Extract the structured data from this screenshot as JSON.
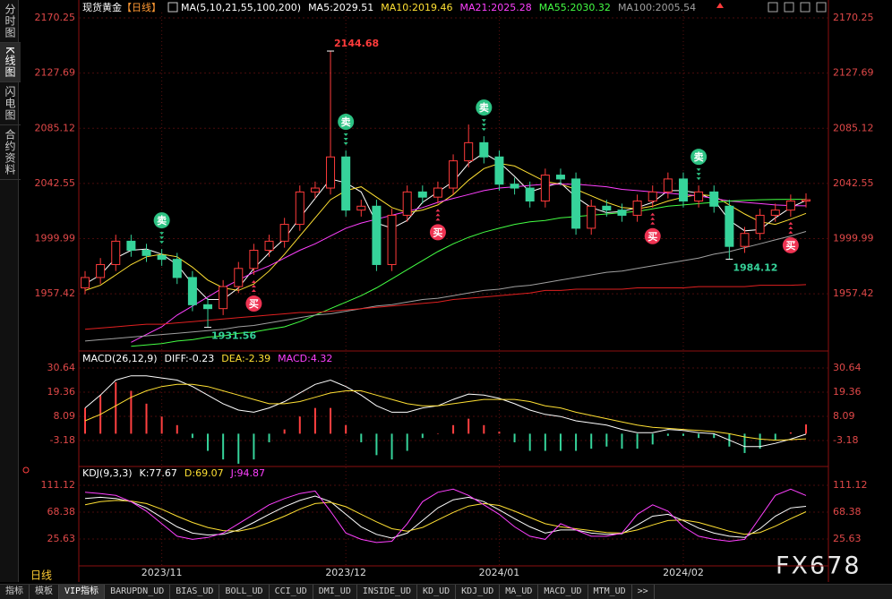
{
  "chart_data": [
    {
      "type": "candlestick",
      "title": "现货黄金",
      "period_tag": "【日线】",
      "indicator": "MA(5,10,21,55,100,200)",
      "categories": [
        null,
        null,
        null,
        null,
        null,
        "2023/11",
        null,
        null,
        null,
        null,
        null,
        null,
        null,
        null,
        null,
        null,
        null,
        "2023/12",
        null,
        null,
        null,
        null,
        null,
        null,
        null,
        null,
        null,
        "2024/01",
        null,
        null,
        null,
        null,
        null,
        null,
        null,
        null,
        null,
        null,
        null,
        "2024/02",
        null,
        null,
        null,
        null,
        null,
        null,
        null,
        null
      ],
      "open": [
        1962,
        1970,
        1980,
        1998,
        1991,
        1987,
        1984,
        1970,
        1949,
        1946,
        1963,
        1977,
        1991,
        1998,
        2011,
        2036,
        2039,
        2063,
        2022,
        2025,
        1980,
        2018,
        2036,
        2032,
        2039,
        2060,
        2074,
        2063,
        2042,
        2039,
        2029,
        2049,
        2046,
        2008,
        2025,
        2022,
        2018,
        2029,
        2036,
        2046,
        2029,
        2036,
        2025,
        1994,
        2004,
        2018,
        2022,
        2029
      ],
      "high": [
        1975,
        1985,
        2003,
        2003,
        1996,
        1992,
        1989,
        1975,
        1954,
        1968,
        1982,
        1996,
        2003,
        2016,
        2041,
        2044,
        2144.68,
        2068,
        2030,
        2030,
        2023,
        2041,
        2041,
        2044,
        2065,
        2088,
        2079,
        2068,
        2047,
        2044,
        2054,
        2054,
        2051,
        2030,
        2030,
        2027,
        2034,
        2041,
        2051,
        2051,
        2041,
        2041,
        2030,
        2009,
        2023,
        2027,
        2034,
        2035
      ],
      "low": [
        1957,
        1965,
        1975,
        1986,
        1982,
        1979,
        1965,
        1944,
        1931.56,
        1941,
        1958,
        1972,
        1986,
        1993,
        2006,
        2031,
        2034,
        2017,
        2017,
        1975,
        1975,
        2013,
        2027,
        2027,
        2034,
        2055,
        2058,
        2037,
        2034,
        2024,
        2024,
        2041,
        2003,
        2003,
        2017,
        2013,
        2013,
        2024,
        2031,
        2024,
        2024,
        2020,
        1984.12,
        1989,
        1999,
        2013,
        2017,
        2024
      ],
      "close": [
        1970,
        1980,
        1998,
        1991,
        1987,
        1984,
        1970,
        1949,
        1946,
        1963,
        1977,
        1991,
        1998,
        2011,
        2036,
        2039,
        2063,
        2022,
        2025,
        1980,
        2018,
        2036,
        2032,
        2039,
        2060,
        2074,
        2063,
        2042,
        2039,
        2029,
        2049,
        2046,
        2008,
        2025,
        2022,
        2018,
        2029,
        2036,
        2046,
        2029,
        2036,
        2025,
        1994,
        2004,
        2018,
        2022,
        2029,
        2030
      ],
      "up_color": "#ff3b3b",
      "down_color": "#36d39a",
      "series": [
        {
          "name": "MA5:2029.51",
          "color": "#ffffff",
          "values": [
            1965,
            1972,
            1985,
            1991,
            1992,
            1988,
            1980,
            1965,
            1953,
            1953,
            1962,
            1977,
            1989,
            2000,
            2016,
            2031,
            2046,
            2043,
            2036,
            2012,
            2008,
            2014,
            2028,
            2036,
            2044,
            2058,
            2066,
            2059,
            2048,
            2036,
            2040,
            2043,
            2032,
            2024,
            2020,
            2021,
            2024,
            2028,
            2037,
            2037,
            2035,
            2030,
            2014,
            2006,
            2007,
            2016,
            2024,
            2029.51
          ]
        },
        {
          "name": "MA10:2019.46",
          "color": "#ffe033",
          "values": [
            1960,
            1964,
            1972,
            1980,
            1986,
            1988,
            1986,
            1978,
            1968,
            1962,
            1960,
            1965,
            1975,
            1988,
            2002,
            2016,
            2030,
            2037,
            2040,
            2032,
            2024,
            2020,
            2022,
            2026,
            2034,
            2045,
            2054,
            2058,
            2056,
            2050,
            2044,
            2042,
            2038,
            2033,
            2028,
            2024,
            2023,
            2025,
            2029,
            2032,
            2034,
            2033,
            2026,
            2019,
            2013,
            2011,
            2015,
            2019.46
          ]
        },
        {
          "name": "MA21:2025.28",
          "color": "#ff40ff",
          "values": [
            null,
            null,
            null,
            1920,
            1926,
            1932,
            1941,
            1948,
            1955,
            1962,
            1968,
            1974,
            1979,
            1985,
            1991,
            1996,
            2002,
            2008,
            2012,
            2015,
            2018,
            2021,
            2024,
            2028,
            2031,
            2034,
            2037,
            2039,
            2040,
            2041,
            2042,
            2042,
            2042,
            2041,
            2040,
            2038,
            2037,
            2036,
            2035,
            2034,
            2033,
            2031,
            2029,
            2028,
            2027,
            2026,
            2025.5,
            2025.28
          ]
        },
        {
          "name": "MA55:2030.32",
          "color": "#44ff44",
          "values": [
            null,
            null,
            null,
            1917,
            1918,
            1919,
            1921,
            1922,
            1924,
            1925,
            1927,
            1928,
            1930,
            1932,
            1936,
            1941,
            1946,
            1951,
            1956,
            1962,
            1969,
            1976,
            1983,
            1990,
            1996,
            2001,
            2005,
            2008,
            2011,
            2013,
            2014,
            2016,
            2017,
            2018,
            2019,
            2020,
            2021,
            2023,
            2025,
            2026,
            2027,
            2028,
            2029,
            2029.5,
            2030,
            2030.2,
            2030.3,
            2030.32
          ]
        },
        {
          "name": "MA100:2005.54",
          "color": "#a0a0a0",
          "values": [
            1921,
            1922,
            1923,
            1924,
            1925,
            1926,
            1927,
            1928,
            1929,
            1930,
            1932,
            1933,
            1935,
            1937,
            1939,
            1941,
            1942,
            1944,
            1946,
            1948,
            1949,
            1951,
            1953,
            1954,
            1956,
            1958,
            1960,
            1961,
            1963,
            1964,
            1966,
            1968,
            1970,
            1972,
            1974,
            1975,
            1977,
            1979,
            1981,
            1983,
            1985,
            1988,
            1990,
            1993,
            1996,
            1999,
            2002,
            2005.54
          ]
        },
        {
          "color": "#e02020",
          "values": [
            1930,
            1931,
            1932,
            1933,
            1934,
            1934,
            1935,
            1936,
            1937,
            1938,
            1939,
            1940,
            1941,
            1942,
            1943,
            1943,
            1944,
            1945,
            1946,
            1947,
            1948,
            1949,
            1950,
            1951,
            1953,
            1954,
            1955,
            1956,
            1957,
            1958,
            1960,
            1960,
            1961,
            1961,
            1961,
            1961,
            1962,
            1962,
            1962,
            1962,
            1963,
            1963,
            1963,
            1963,
            1964,
            1964,
            1964,
            1964.5
          ]
        }
      ],
      "signals": [
        {
          "label": "卖",
          "index": 5
        },
        {
          "label": "卖",
          "index": 17
        },
        {
          "label": "卖",
          "index": 26
        },
        {
          "label": "卖",
          "index": 40
        },
        {
          "label": "买",
          "index": 11
        },
        {
          "label": "买",
          "index": 23
        },
        {
          "label": "买",
          "index": 37
        },
        {
          "label": "买",
          "index": 46
        }
      ],
      "ylim": [
        1914.7,
        2174.4
      ],
      "yticks": [
        1957.42,
        1999.99,
        2042.55,
        2085.12,
        2127.69,
        2170.25
      ],
      "grid": true
    },
    {
      "type": "macd",
      "title": "MACD(26,12,9)",
      "up_color": "#ff4040",
      "down_color": "#36d39a",
      "series": [
        {
          "name": "DIFF:-0.23",
          "color": "#ffffff",
          "values": [
            12,
            18,
            25,
            27,
            27,
            26,
            25,
            22,
            18,
            14,
            11,
            10,
            12,
            15,
            19,
            23,
            25,
            22,
            18,
            13,
            10,
            10,
            12,
            13,
            16,
            18.5,
            18,
            16.5,
            14,
            11,
            9,
            8,
            6,
            5,
            4,
            2,
            0.5,
            0.5,
            2,
            1.5,
            0.5,
            0,
            -3,
            -6,
            -6,
            -4.5,
            -2.5,
            -0.23
          ]
        },
        {
          "name": "DEA:-2.39",
          "color": "#ffe033",
          "values": [
            6,
            9,
            13,
            17,
            20,
            22,
            23,
            23,
            22,
            20,
            18,
            16,
            14,
            14,
            15,
            17,
            19,
            20,
            20,
            18,
            16,
            14,
            13,
            13,
            14,
            15,
            16,
            16,
            16,
            15,
            13,
            12,
            10,
            8.5,
            7,
            5.5,
            4,
            3,
            2.5,
            2,
            1.5,
            1,
            0,
            -1.5,
            -2.5,
            -3,
            -2.8,
            -2.39
          ]
        },
        {
          "name": "MACD:4.32",
          "color": "#ff40ff",
          "bars": true,
          "values": [
            12,
            18,
            24,
            20,
            14,
            8,
            4,
            -2,
            -8,
            -12,
            -14,
            -12,
            -4,
            2,
            8,
            12,
            12,
            4,
            -4,
            -10,
            -12,
            -8,
            -2,
            0,
            4,
            7,
            4,
            1,
            -4,
            -8,
            -8,
            -8,
            -8,
            -7,
            -6,
            -7,
            -7,
            -5,
            -1,
            -1,
            -2,
            -2,
            -6,
            -9,
            -7,
            -3,
            0.6,
            4.32
          ]
        }
      ],
      "ylim": [
        -14.87,
        37.32
      ],
      "yticks": [
        -3.18,
        8.09,
        19.36,
        30.64
      ],
      "grid": true
    },
    {
      "type": "kdj",
      "title": "KDJ(9,3,3)",
      "series": [
        {
          "name": "K:77.67",
          "color": "#ffffff",
          "values": [
            90,
            92,
            90,
            85,
            75,
            60,
            45,
            35,
            32,
            33,
            40,
            52,
            65,
            77,
            87,
            94,
            85,
            65,
            45,
            33,
            27,
            35,
            55,
            75,
            88,
            92,
            85,
            72,
            58,
            45,
            35,
            40,
            40,
            35,
            33,
            34,
            48,
            62,
            65,
            55,
            43,
            35,
            30,
            28,
            42,
            62,
            75,
            77.67
          ]
        },
        {
          "name": "D:69.07",
          "color": "#ffe033",
          "values": [
            80,
            85,
            87,
            86,
            82,
            73,
            62,
            52,
            44,
            39,
            38,
            43,
            52,
            62,
            73,
            82,
            84,
            77,
            65,
            53,
            42,
            38,
            44,
            56,
            68,
            78,
            82,
            79,
            70,
            60,
            50,
            45,
            42,
            39,
            36,
            35,
            40,
            48,
            55,
            56,
            52,
            45,
            38,
            33,
            36,
            46,
            58,
            69.07
          ]
        },
        {
          "name": "J:94.87",
          "color": "#ff40ff",
          "values": [
            100,
            98,
            95,
            85,
            70,
            50,
            30,
            25,
            28,
            35,
            50,
            65,
            80,
            90,
            98,
            102,
            70,
            35,
            25,
            20,
            22,
            50,
            85,
            100,
            105,
            95,
            80,
            65,
            45,
            30,
            25,
            50,
            40,
            30,
            30,
            35,
            65,
            80,
            70,
            45,
            30,
            25,
            22,
            25,
            60,
            95,
            105,
            94.87
          ]
        }
      ],
      "ylim": [
        -14.3,
        138.2
      ],
      "yticks": [
        25.63,
        68.38,
        111.12
      ],
      "grid": true
    }
  ],
  "ui": {
    "sidebar": [
      "分时图",
      "K线图",
      "闪电图",
      "合约资料"
    ],
    "period": "日线",
    "tabs": [
      "指标",
      "模板",
      "VIP指标",
      "BARUPDN_UD",
      "BIAS_UD",
      "BOLL_UD",
      "CCI_UD",
      "DMI_UD",
      "INSIDE_UD",
      "KD_UD",
      "KDJ_UD",
      "MA_UD",
      "MACD_UD",
      "MTM_UD",
      ">>"
    ],
    "watermark": "FX678"
  }
}
